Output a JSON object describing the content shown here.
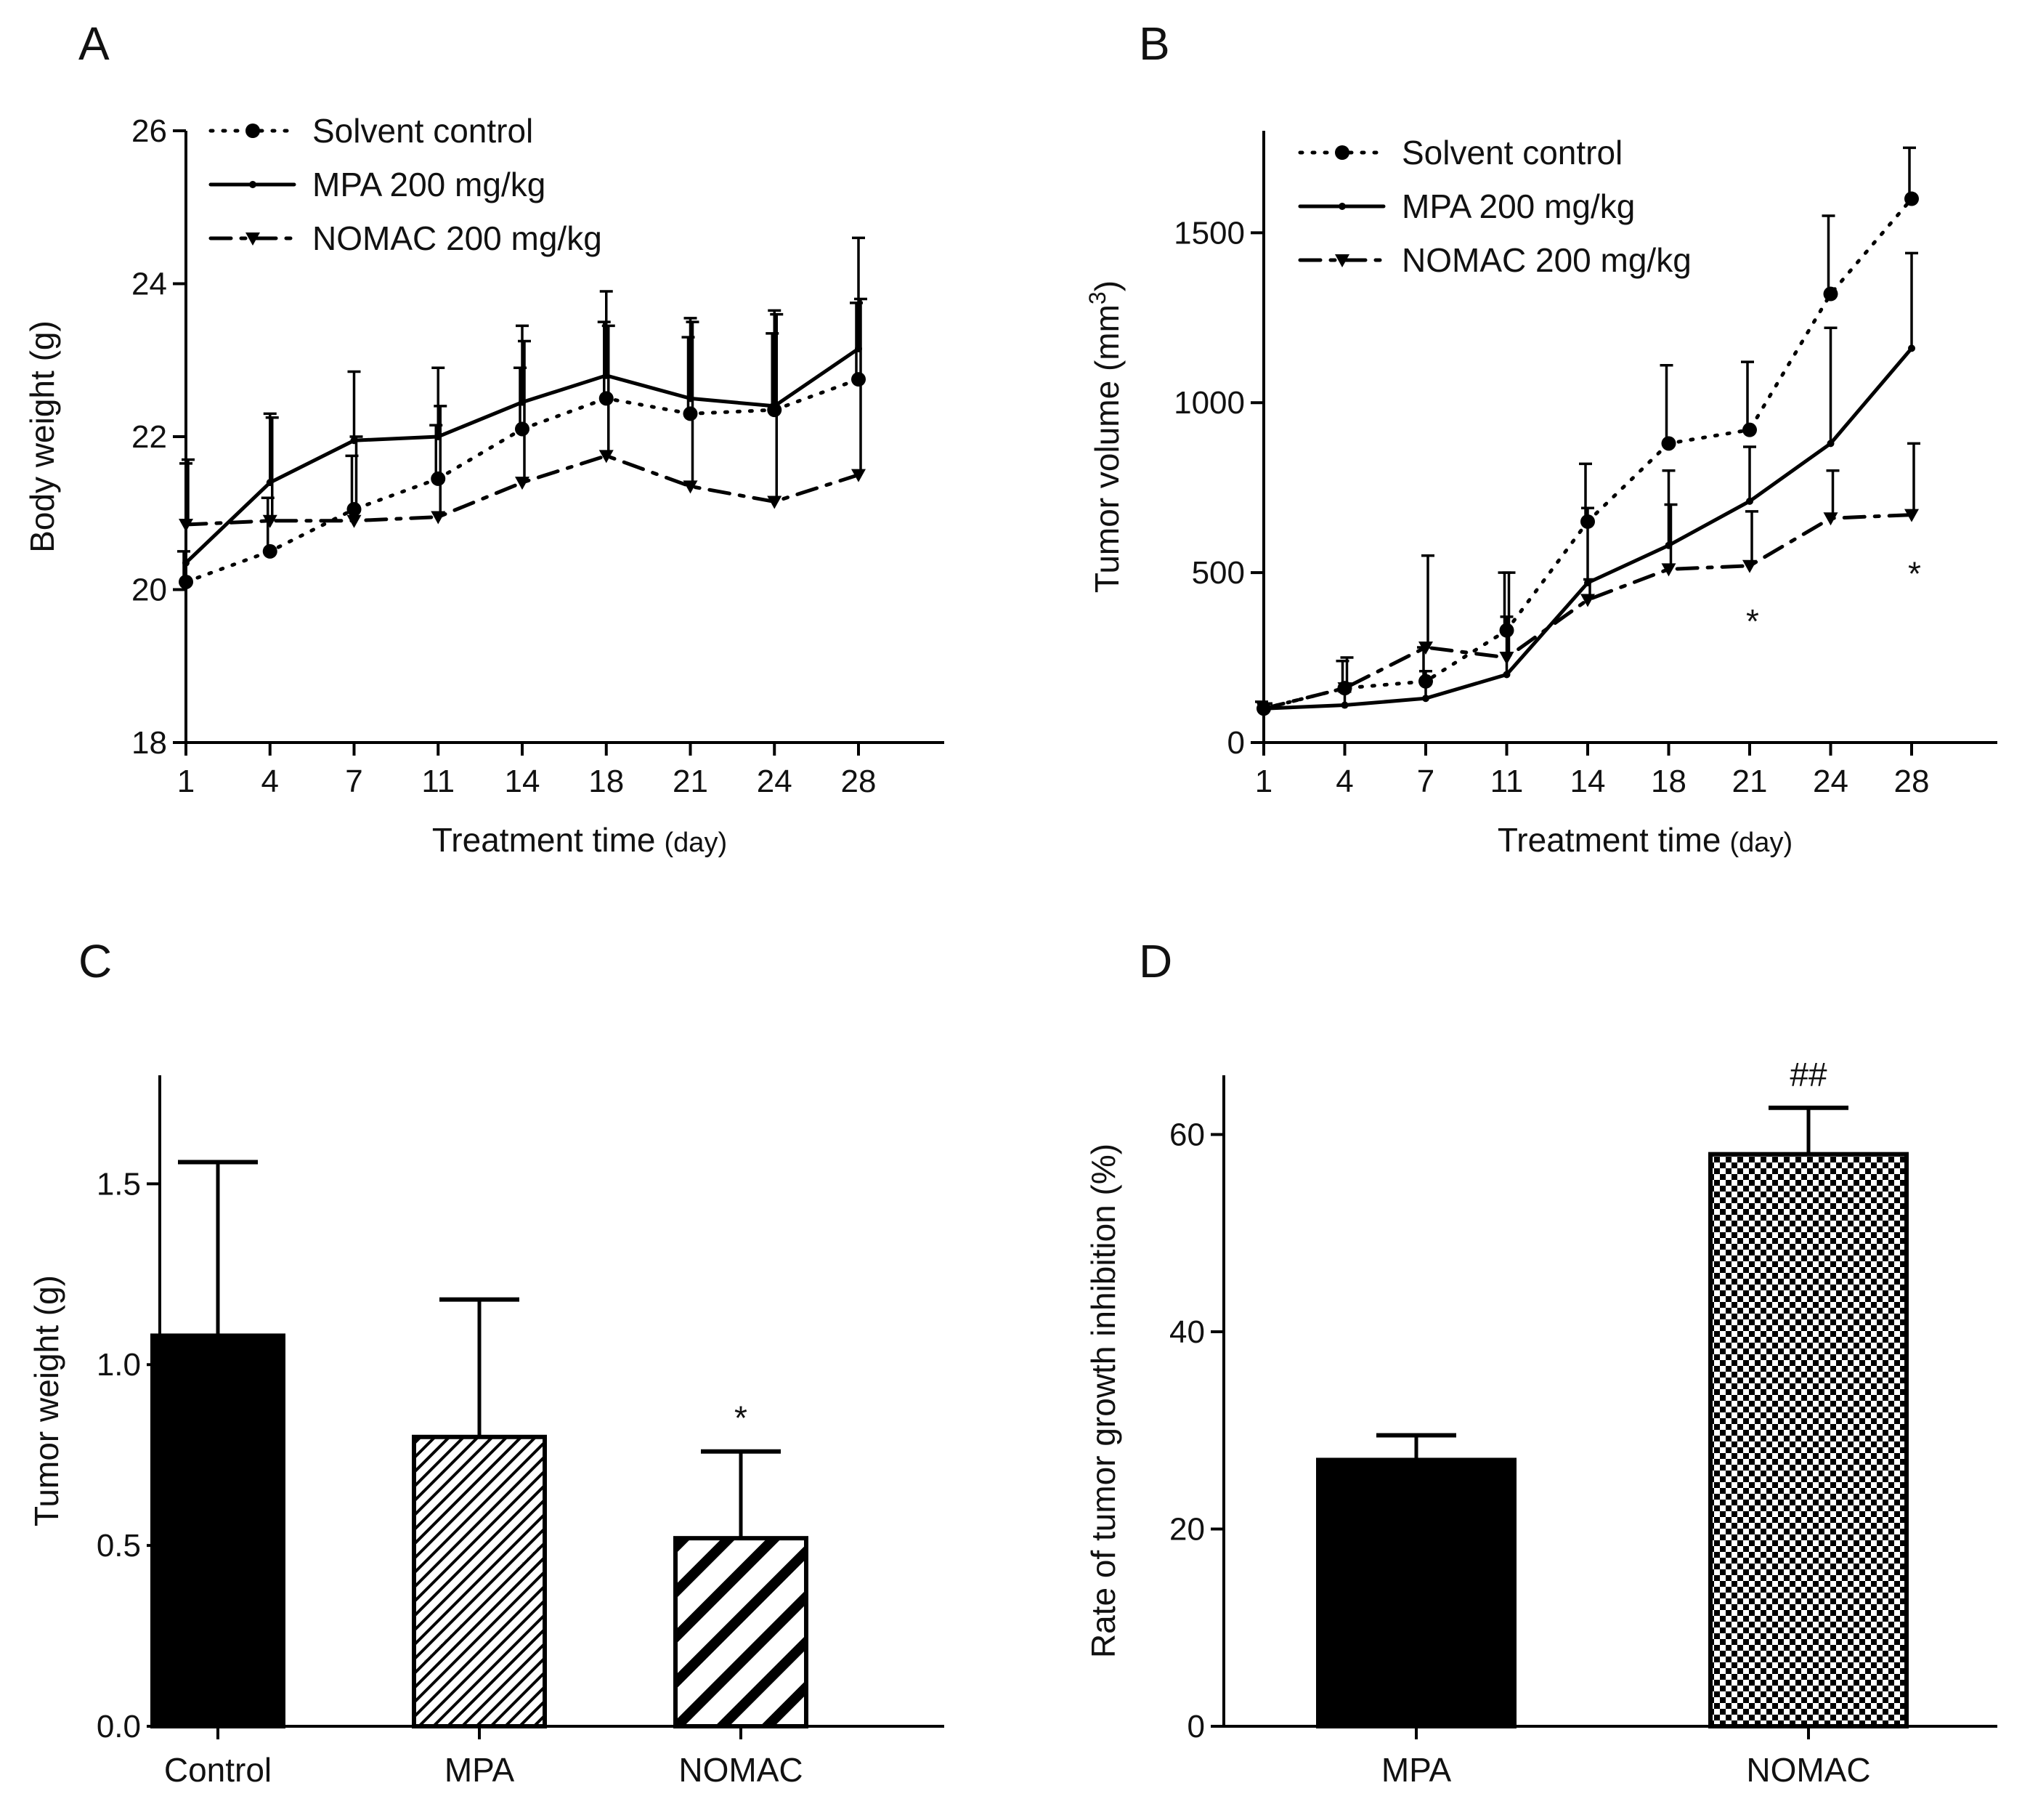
{
  "chart_data": [
    {
      "panel": "A",
      "type": "line",
      "xlabel": "Treatment time",
      "xlabel_unit": "(day)",
      "ylabel": "Body weight (g)",
      "categories": [
        "1",
        "4",
        "7",
        "11",
        "14",
        "18",
        "21",
        "24",
        "28"
      ],
      "ylim": [
        18,
        26
      ],
      "yticks": [
        18,
        20,
        22,
        24,
        26
      ],
      "legend_position": "top-left",
      "series": [
        {
          "name": "Solvent control",
          "style": "dotted",
          "marker": "circle",
          "values": [
            20.1,
            20.5,
            21.05,
            21.45,
            22.1,
            22.5,
            22.3,
            22.35,
            22.75
          ],
          "errors": [
            0.4,
            0.7,
            0.7,
            0.7,
            0.8,
            1.0,
            1.0,
            1.0,
            1.0
          ]
        },
        {
          "name": "MPA 200 mg/kg",
          "style": "solid",
          "marker": "dot",
          "values": [
            20.35,
            21.4,
            21.95,
            22.0,
            22.45,
            22.8,
            22.5,
            22.4,
            23.15
          ],
          "errors": [
            1.3,
            0.9,
            0.9,
            0.9,
            1.0,
            1.1,
            1.05,
            1.25,
            1.45
          ]
        },
        {
          "name": "NOMAC 200 mg/kg",
          "style": "dash-dot",
          "marker": "triangle-down",
          "values": [
            20.85,
            20.9,
            20.9,
            20.95,
            21.4,
            21.75,
            21.35,
            21.15,
            21.5
          ],
          "errors": [
            0.85,
            1.35,
            1.1,
            1.45,
            1.85,
            1.7,
            2.15,
            2.45,
            2.3
          ]
        }
      ]
    },
    {
      "panel": "B",
      "type": "line",
      "xlabel": "Treatment time",
      "xlabel_unit": "(day)",
      "ylabel": "Tumor volume (mm",
      "ylabel_sup": "3",
      "ylabel_end": ")",
      "categories": [
        "1",
        "4",
        "7",
        "11",
        "14",
        "18",
        "21",
        "24",
        "28"
      ],
      "ylim": [
        0,
        1800
      ],
      "yticks": [
        0,
        500,
        1000,
        1500
      ],
      "legend_position": "top-left",
      "series": [
        {
          "name": "Solvent control",
          "style": "dotted",
          "marker": "circle",
          "values": [
            100,
            160,
            180,
            330,
            650,
            880,
            920,
            1320,
            1600
          ],
          "errors": [
            20,
            80,
            100,
            170,
            170,
            230,
            200,
            230,
            150
          ]
        },
        {
          "name": "MPA 200 mg/kg",
          "style": "solid",
          "marker": "dot",
          "values": [
            100,
            110,
            130,
            200,
            470,
            580,
            710,
            880,
            1160
          ],
          "errors": [
            15,
            40,
            80,
            170,
            220,
            220,
            160,
            340,
            280
          ]
        },
        {
          "name": "NOMAC 200 mg/kg",
          "style": "dash-dot",
          "marker": "triangle-down",
          "values": [
            100,
            160,
            280,
            250,
            420,
            510,
            520,
            660,
            670
          ],
          "errors": [
            15,
            90,
            270,
            250,
            60,
            190,
            160,
            140,
            210
          ]
        }
      ],
      "annotations": [
        {
          "category": "21",
          "text": "*",
          "value": 400
        },
        {
          "category": "28",
          "text": "*",
          "value": 540
        }
      ]
    },
    {
      "panel": "C",
      "type": "bar",
      "xlabel": "",
      "ylabel": "Tumor weight (g)",
      "categories": [
        "Control",
        "MPA",
        "NOMAC"
      ],
      "values": [
        1.08,
        0.8,
        0.52
      ],
      "errors": [
        0.48,
        0.38,
        0.24
      ],
      "fills": [
        "solid",
        "fine-diagonal",
        "wide-diagonal"
      ],
      "ylim": [
        0,
        1.8
      ],
      "yticks": [
        "0.0",
        "0.5",
        "1.0",
        "1.5"
      ],
      "annotations": [
        {
          "category": "NOMAC",
          "text": "*"
        }
      ]
    },
    {
      "panel": "D",
      "type": "bar",
      "xlabel": "",
      "ylabel": "Rate of tumor growth inhibition (%)",
      "categories": [
        "MPA",
        "NOMAC"
      ],
      "values": [
        27,
        58
      ],
      "errors": [
        2.5,
        4.7
      ],
      "fills": [
        "solid",
        "checkerboard"
      ],
      "ylim": [
        0,
        66
      ],
      "yticks": [
        "0",
        "20",
        "40",
        "60"
      ],
      "annotations": [
        {
          "category": "NOMAC",
          "text": "##"
        }
      ]
    }
  ]
}
